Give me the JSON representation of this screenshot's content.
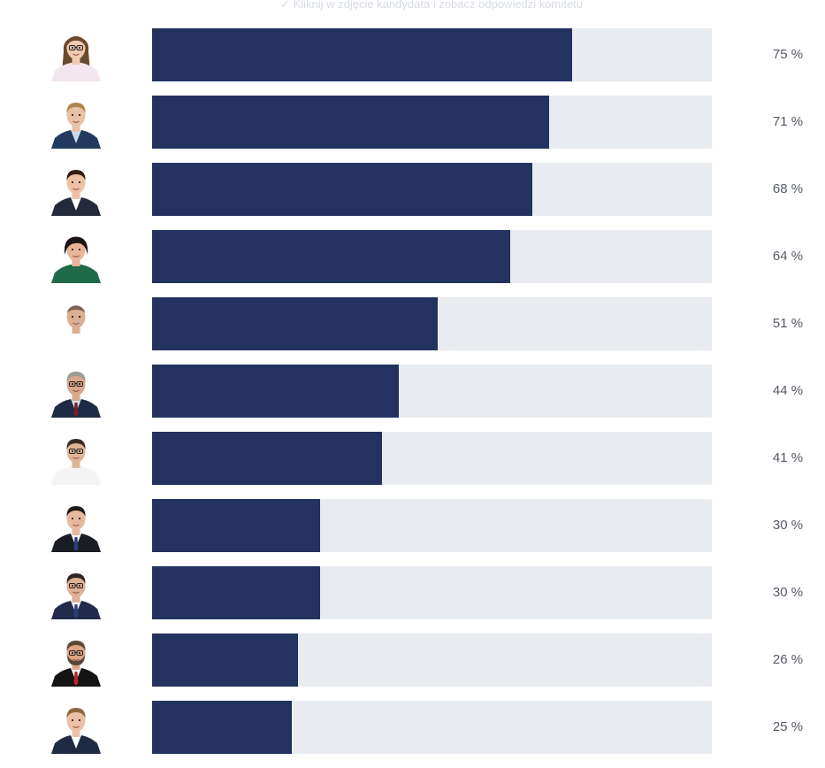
{
  "hint": "✓ Kliknij w zdjęcie kandydata i zobacz odpowiedzi komitetu",
  "colors": {
    "bar_fill": "#233260",
    "bar_track": "#e8ebf0",
    "percent_text": "#555a66"
  },
  "candidates": [
    {
      "percent": 75,
      "label": "75 %",
      "avatar": {
        "skin": "#f0c9ae",
        "hair": "#6b4a2f",
        "hairStyle": "long",
        "outfit": "#f3e6ee",
        "shirt": "#f3e6ee",
        "tie": "",
        "glasses": true
      }
    },
    {
      "percent": 71,
      "label": "71 %",
      "avatar": {
        "skin": "#e9c2a5",
        "hair": "#b0864f",
        "hairStyle": "short",
        "outfit": "#233a5e",
        "shirt": "#c9dcef",
        "tie": "",
        "glasses": false
      }
    },
    {
      "percent": 68,
      "label": "68 %",
      "avatar": {
        "skin": "#eec1a2",
        "hair": "#2d1d14",
        "hairStyle": "short",
        "outfit": "#252a3a",
        "shirt": "#ffffff",
        "tie": "",
        "glasses": false
      }
    },
    {
      "percent": 64,
      "label": "64 %",
      "avatar": {
        "skin": "#e8b59a",
        "hair": "#1c1412",
        "hairStyle": "bob",
        "outfit": "#1f6a48",
        "shirt": "#1f6a48",
        "tie": "",
        "glasses": false
      }
    },
    {
      "percent": 51,
      "label": "51 %",
      "avatar": {
        "skin": "#dcae92",
        "hair": "#2b2622",
        "hairStyle": "bald",
        "outfit": "#ffffff",
        "shirt": "#ffffff",
        "tie": "",
        "glasses": false
      }
    },
    {
      "percent": 44,
      "label": "44 %",
      "avatar": {
        "skin": "#d8a88b",
        "hair": "#9e9a94",
        "hairStyle": "short",
        "outfit": "#1f2a44",
        "shirt": "#d9dde6",
        "tie": "#7a1f2a",
        "glasses": true
      }
    },
    {
      "percent": 41,
      "label": "41 %",
      "avatar": {
        "skin": "#e2b496",
        "hair": "#3a2a20",
        "hairStyle": "short",
        "outfit": "#f4f4f4",
        "shirt": "#f4f4f4",
        "tie": "",
        "glasses": true
      }
    },
    {
      "percent": 30,
      "label": "30 %",
      "avatar": {
        "skin": "#e6b99c",
        "hair": "#1f1a18",
        "hairStyle": "short",
        "outfit": "#1b1d24",
        "shirt": "#ffffff",
        "tie": "#2b3f7a",
        "glasses": false
      }
    },
    {
      "percent": 30,
      "label": "30 %",
      "avatar": {
        "skin": "#e0b093",
        "hair": "#2f2520",
        "hairStyle": "short",
        "outfit": "#232b4d",
        "shirt": "#ffffff",
        "tie": "#2b3f7a",
        "glasses": true
      }
    },
    {
      "percent": 26,
      "label": "26 %",
      "avatar": {
        "skin": "#dba585",
        "hair": "#5b4534",
        "hairStyle": "beard",
        "outfit": "#141414",
        "shirt": "#ffffff",
        "tie": "#b3262c",
        "glasses": true
      }
    },
    {
      "percent": 25,
      "label": "25 %",
      "avatar": {
        "skin": "#ecc1a5",
        "hair": "#8a6a3f",
        "hairStyle": "short",
        "outfit": "#1f2a44",
        "shirt": "#ffffff",
        "tie": "",
        "glasses": false
      }
    }
  ]
}
